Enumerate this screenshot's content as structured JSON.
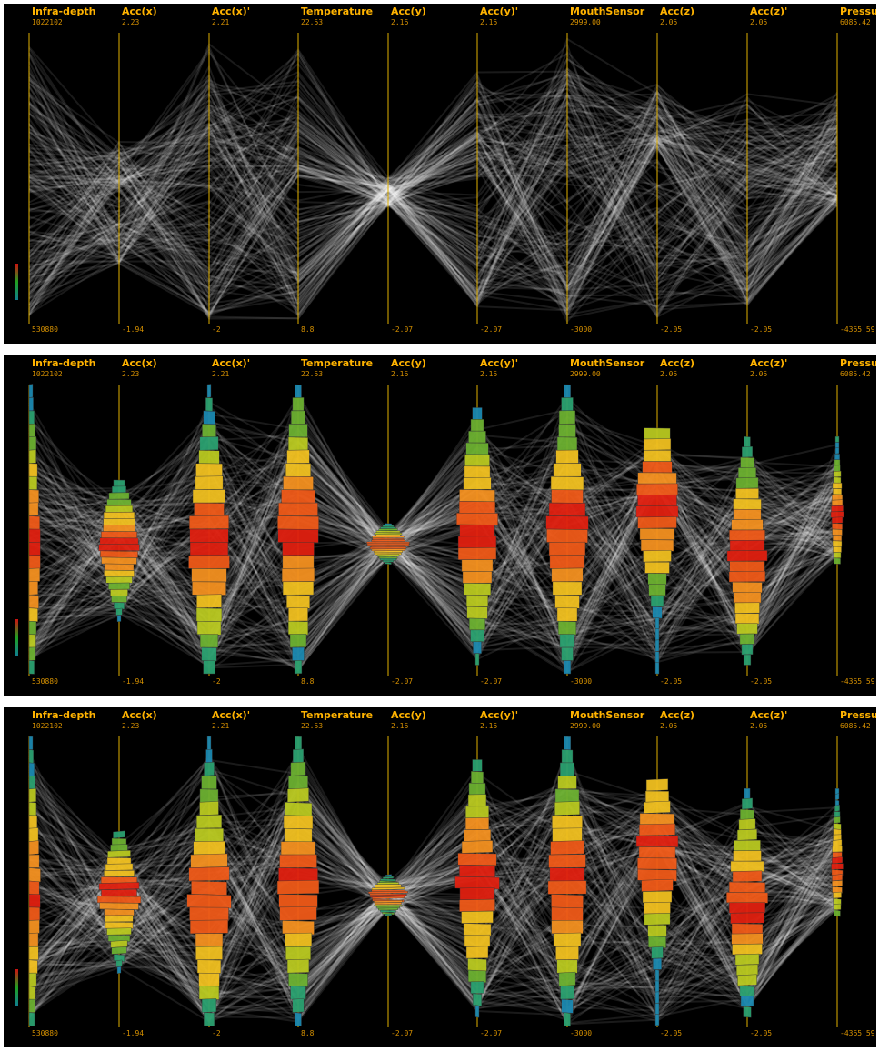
{
  "chart_data": [
    {
      "type": "parallel-coordinates",
      "variant": "polylines",
      "axes": [
        {
          "name": "Infra-depth",
          "max": "1022102",
          "min": "530880"
        },
        {
          "name": "Acc(x)",
          "max": "2.23",
          "min": "-1.94"
        },
        {
          "name": "Acc(x)'",
          "max": "2.21",
          "min": "-2"
        },
        {
          "name": "Temperature",
          "max": "22.53",
          "min": "8.8"
        },
        {
          "name": "Acc(y)",
          "max": "2.16",
          "min": "-2.07"
        },
        {
          "name": "Acc(y)'",
          "max": "2.15",
          "min": "-2.07"
        },
        {
          "name": "MouthSensor",
          "max": "2999.00",
          "min": "-3000"
        },
        {
          "name": "Acc(z)",
          "max": "2.05",
          "min": "-2.05"
        },
        {
          "name": "Acc(z)'",
          "max": "2.05",
          "min": "-2.05"
        },
        {
          "name": "Pressure",
          "max": "6085.42",
          "min": "-4365.59"
        }
      ]
    },
    {
      "type": "parallel-coordinates",
      "variant": "polylines with density glyphs",
      "axes": [
        {
          "name": "Infra-depth",
          "max": "1022102",
          "min": "530880"
        },
        {
          "name": "Acc(x)",
          "max": "2.23",
          "min": "-1.94"
        },
        {
          "name": "Acc(x)'",
          "max": "2.21",
          "min": "-2"
        },
        {
          "name": "Temperature",
          "max": "22.53",
          "min": "8.8"
        },
        {
          "name": "Acc(y)",
          "max": "2.16",
          "min": "-2.07"
        },
        {
          "name": "Acc(y)'",
          "max": "2.15",
          "min": "-2.07"
        },
        {
          "name": "MouthSensor",
          "max": "2999.00",
          "min": "-3000"
        },
        {
          "name": "Acc(z)",
          "max": "2.05",
          "min": "-2.05"
        },
        {
          "name": "Acc(z)'",
          "max": "2.05",
          "min": "-2.05"
        },
        {
          "name": "Pressure",
          "max": "6085.42",
          "min": "-4365.59"
        }
      ]
    },
    {
      "type": "parallel-coordinates",
      "variant": "polylines with binned density glyphs",
      "axes": [
        {
          "name": "Infra-depth",
          "max": "1022102",
          "min": "530880"
        },
        {
          "name": "Acc(x)",
          "max": "2.23",
          "min": "-1.94"
        },
        {
          "name": "Acc(x)'",
          "max": "2.21",
          "min": "-2"
        },
        {
          "name": "Temperature",
          "max": "22.53",
          "min": "8.8"
        },
        {
          "name": "Acc(y)",
          "max": "2.16",
          "min": "-2.07"
        },
        {
          "name": "Acc(y)'",
          "max": "2.15",
          "min": "-2.07"
        },
        {
          "name": "MouthSensor",
          "max": "2999.00",
          "min": "-3000"
        },
        {
          "name": "Acc(z)",
          "max": "2.05",
          "min": "-2.05"
        },
        {
          "name": "Acc(z)'",
          "max": "2.05",
          "min": "-2.05"
        },
        {
          "name": "Pressure",
          "max": "6085.42",
          "min": "-4365.59"
        }
      ]
    }
  ],
  "colors": {
    "background": "#000000",
    "axis": "#e0b000",
    "label": "#ffb300",
    "line": "#ffffff",
    "glyph_high": "#e02010",
    "glyph_mid": "#f0c020",
    "glyph_low": "#1a88b0"
  }
}
